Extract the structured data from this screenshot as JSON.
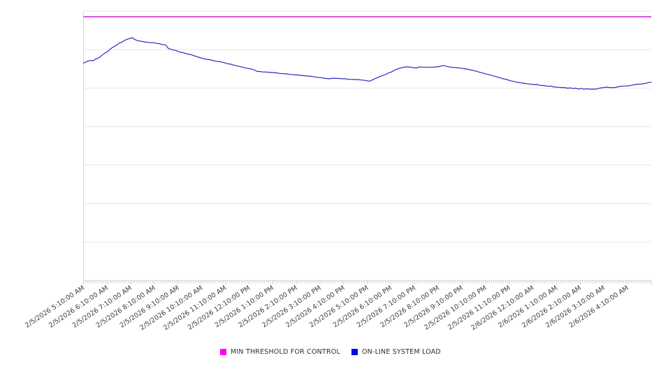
{
  "chart_data": {
    "type": "line",
    "title": "",
    "grid": "horizontal",
    "y_axis_labels_visible": false,
    "ylim": [
      0,
      100
    ],
    "legend_position": "bottom-center",
    "x_tick_labels": [
      "2/5/2026 5:10:00 AM",
      "2/5/2026 6:10:00 AM",
      "2/5/2026 7:10:00 AM",
      "2/5/2026 8:10:00 AM",
      "2/5/2026 9:10:00 AM",
      "2/5/2026 10:10:00 AM",
      "2/5/2026 11:10:00 AM",
      "2/5/2026 12:10:00 PM",
      "2/5/2026 1:10:00 PM",
      "2/5/2026 2:10:00 PM",
      "2/5/2026 3:10:00 PM",
      "2/5/2026 4:10:00 PM",
      "2/5/2026 5:10:00 PM",
      "2/5/2026 6:10:00 PM",
      "2/5/2026 7:10:00 PM",
      "2/5/2026 8:10:00 PM",
      "2/5/2026 9:10:00 PM",
      "2/5/2026 10:10:00 PM",
      "2/5/2026 11:10:00 PM",
      "2/6/2026 12:10:00 AM",
      "2/6/2026 1:10:00 AM",
      "2/6/2026 2:10:00 AM",
      "2/6/2026 3:10:00 AM",
      "2/6/2026 4:10:00 AM"
    ],
    "minor_ticks_per_label_interval": 12,
    "legend": [
      {
        "label": "MIN THRESHOLD FOR CONTROL",
        "color": "#ff00ff"
      },
      {
        "label": "ON-LINE SYSTEM LOAD",
        "color": "#0000ee"
      }
    ],
    "series": [
      {
        "name": "MIN THRESHOLD FOR CONTROL",
        "type": "constant",
        "value": 97.9,
        "color": "#cc00cc"
      },
      {
        "name": "ON-LINE SYSTEM LOAD",
        "type": "line",
        "color": "#2a2ac0",
        "points": [
          [
            0.0,
            80.7
          ],
          [
            0.0062,
            81.3
          ],
          [
            0.0123,
            81.7
          ],
          [
            0.0172,
            81.6
          ],
          [
            0.0221,
            82.3
          ],
          [
            0.0271,
            82.7
          ],
          [
            0.032,
            83.5
          ],
          [
            0.0381,
            84.5
          ],
          [
            0.0418,
            84.9
          ],
          [
            0.0443,
            85.3
          ],
          [
            0.048,
            86.1
          ],
          [
            0.0517,
            86.6
          ],
          [
            0.0554,
            87.0
          ],
          [
            0.059,
            87.5
          ],
          [
            0.0627,
            88.1
          ],
          [
            0.0677,
            88.5
          ],
          [
            0.0726,
            89.2
          ],
          [
            0.0775,
            89.6
          ],
          [
            0.0824,
            89.9
          ],
          [
            0.0861,
            90.2
          ],
          [
            0.0886,
            89.7
          ],
          [
            0.0923,
            89.3
          ],
          [
            0.0959,
            89.0
          ],
          [
            0.0996,
            88.9
          ],
          [
            0.1046,
            88.7
          ],
          [
            0.1095,
            88.5
          ],
          [
            0.1144,
            88.4
          ],
          [
            0.1193,
            88.3
          ],
          [
            0.1242,
            88.3
          ],
          [
            0.1292,
            88.0
          ],
          [
            0.1341,
            87.9
          ],
          [
            0.139,
            87.6
          ],
          [
            0.1439,
            87.5
          ],
          [
            0.1464,
            87.1
          ],
          [
            0.1488,
            86.3
          ],
          [
            0.1538,
            85.8
          ],
          [
            0.1587,
            85.6
          ],
          [
            0.1636,
            85.3
          ],
          [
            0.1685,
            84.9
          ],
          [
            0.1734,
            84.7
          ],
          [
            0.1784,
            84.4
          ],
          [
            0.1833,
            84.1
          ],
          [
            0.1882,
            83.9
          ],
          [
            0.1931,
            83.6
          ],
          [
            0.198,
            83.2
          ],
          [
            0.203,
            82.9
          ],
          [
            0.2079,
            82.6
          ],
          [
            0.2128,
            82.3
          ],
          [
            0.2177,
            82.1
          ],
          [
            0.2226,
            82.0
          ],
          [
            0.2288,
            81.6
          ],
          [
            0.2349,
            81.4
          ],
          [
            0.2411,
            81.2
          ],
          [
            0.2472,
            80.9
          ],
          [
            0.2534,
            80.5
          ],
          [
            0.2595,
            80.3
          ],
          [
            0.2657,
            79.9
          ],
          [
            0.2719,
            79.6
          ],
          [
            0.278,
            79.3
          ],
          [
            0.2842,
            79.0
          ],
          [
            0.2903,
            78.7
          ],
          [
            0.2965,
            78.5
          ],
          [
            0.3026,
            78.0
          ],
          [
            0.3063,
            77.6
          ],
          [
            0.3112,
            77.6
          ],
          [
            0.3161,
            77.4
          ],
          [
            0.321,
            77.4
          ],
          [
            0.3272,
            77.3
          ],
          [
            0.3333,
            77.2
          ],
          [
            0.3395,
            77.1
          ],
          [
            0.3456,
            76.9
          ],
          [
            0.3518,
            76.8
          ],
          [
            0.3579,
            76.7
          ],
          [
            0.3641,
            76.5
          ],
          [
            0.3702,
            76.4
          ],
          [
            0.3764,
            76.3
          ],
          [
            0.3825,
            76.2
          ],
          [
            0.3887,
            76.0
          ],
          [
            0.3948,
            75.9
          ],
          [
            0.401,
            75.8
          ],
          [
            0.4071,
            75.6
          ],
          [
            0.4133,
            75.4
          ],
          [
            0.4182,
            75.3
          ],
          [
            0.4231,
            75.1
          ],
          [
            0.428,
            75.0
          ],
          [
            0.4317,
            74.9
          ],
          [
            0.4367,
            75.0
          ],
          [
            0.4416,
            75.1
          ],
          [
            0.4465,
            75.0
          ],
          [
            0.4514,
            75.0
          ],
          [
            0.4563,
            74.9
          ],
          [
            0.4613,
            74.9
          ],
          [
            0.4662,
            74.7
          ],
          [
            0.4711,
            74.7
          ],
          [
            0.476,
            74.6
          ],
          [
            0.4809,
            74.6
          ],
          [
            0.4859,
            74.5
          ],
          [
            0.4908,
            74.4
          ],
          [
            0.4957,
            74.3
          ],
          [
            0.5006,
            74.1
          ],
          [
            0.5043,
            74.0
          ],
          [
            0.508,
            74.4
          ],
          [
            0.5129,
            74.9
          ],
          [
            0.5178,
            75.3
          ],
          [
            0.5228,
            75.8
          ],
          [
            0.5277,
            76.2
          ],
          [
            0.5326,
            76.5
          ],
          [
            0.5375,
            77.1
          ],
          [
            0.5424,
            77.4
          ],
          [
            0.5473,
            78.0
          ],
          [
            0.5523,
            78.5
          ],
          [
            0.5572,
            78.8
          ],
          [
            0.5621,
            79.1
          ],
          [
            0.567,
            79.3
          ],
          [
            0.5719,
            79.3
          ],
          [
            0.5769,
            79.2
          ],
          [
            0.5818,
            79.0
          ],
          [
            0.5867,
            78.9
          ],
          [
            0.5916,
            79.3
          ],
          [
            0.5965,
            79.2
          ],
          [
            0.6015,
            79.2
          ],
          [
            0.6064,
            79.2
          ],
          [
            0.6113,
            79.2
          ],
          [
            0.6162,
            79.2
          ],
          [
            0.6211,
            79.3
          ],
          [
            0.626,
            79.4
          ],
          [
            0.631,
            79.7
          ],
          [
            0.6359,
            79.8
          ],
          [
            0.6408,
            79.4
          ],
          [
            0.647,
            79.2
          ],
          [
            0.6531,
            79.1
          ],
          [
            0.6593,
            79.0
          ],
          [
            0.6654,
            78.8
          ],
          [
            0.6716,
            78.6
          ],
          [
            0.6777,
            78.4
          ],
          [
            0.6839,
            78.1
          ],
          [
            0.69,
            77.8
          ],
          [
            0.6962,
            77.4
          ],
          [
            0.7023,
            77.1
          ],
          [
            0.7085,
            76.7
          ],
          [
            0.7146,
            76.4
          ],
          [
            0.7208,
            76.0
          ],
          [
            0.7269,
            75.7
          ],
          [
            0.7331,
            75.3
          ],
          [
            0.7392,
            74.9
          ],
          [
            0.7454,
            74.6
          ],
          [
            0.7515,
            74.2
          ],
          [
            0.7577,
            73.9
          ],
          [
            0.7638,
            73.6
          ],
          [
            0.77,
            73.4
          ],
          [
            0.7761,
            73.2
          ],
          [
            0.7823,
            73.0
          ],
          [
            0.7884,
            72.9
          ],
          [
            0.7933,
            72.7
          ],
          [
            0.7983,
            72.8
          ],
          [
            0.8032,
            72.5
          ],
          [
            0.8081,
            72.4
          ],
          [
            0.813,
            72.3
          ],
          [
            0.8179,
            72.1
          ],
          [
            0.8229,
            72.2
          ],
          [
            0.8278,
            71.9
          ],
          [
            0.8327,
            71.8
          ],
          [
            0.8376,
            71.7
          ],
          [
            0.8425,
            71.6
          ],
          [
            0.8475,
            71.6
          ],
          [
            0.8524,
            71.4
          ],
          [
            0.8573,
            71.5
          ],
          [
            0.8622,
            71.3
          ],
          [
            0.8671,
            71.4
          ],
          [
            0.8721,
            71.1
          ],
          [
            0.877,
            71.3
          ],
          [
            0.8819,
            71.0
          ],
          [
            0.8868,
            71.2
          ],
          [
            0.8917,
            71.0
          ],
          [
            0.8967,
            71.1
          ],
          [
            0.9016,
            71.0
          ],
          [
            0.9065,
            71.3
          ],
          [
            0.9114,
            71.5
          ],
          [
            0.9163,
            71.6
          ],
          [
            0.9213,
            71.8
          ],
          [
            0.9262,
            71.6
          ],
          [
            0.9311,
            71.6
          ],
          [
            0.936,
            71.6
          ],
          [
            0.9409,
            71.9
          ],
          [
            0.9459,
            72.1
          ],
          [
            0.9508,
            72.2
          ],
          [
            0.9557,
            72.2
          ],
          [
            0.9606,
            72.3
          ],
          [
            0.9655,
            72.5
          ],
          [
            0.9705,
            72.7
          ],
          [
            0.9754,
            72.8
          ],
          [
            0.9803,
            72.9
          ],
          [
            0.9852,
            73.0
          ],
          [
            0.9902,
            73.2
          ],
          [
            0.9951,
            73.5
          ],
          [
            1.0,
            73.6
          ]
        ]
      }
    ],
    "colors": {
      "gridline": "#e7e7e7",
      "axis_line": "#d6d6d6",
      "tick": "#c4c4c4",
      "label_text": "#3d3d3d"
    }
  }
}
